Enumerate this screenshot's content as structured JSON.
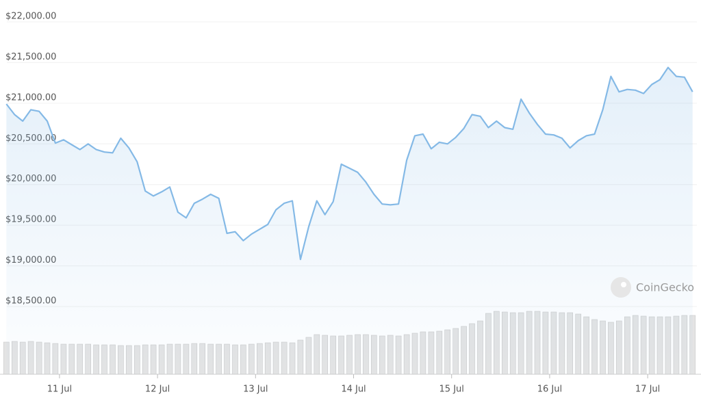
{
  "chart_data": {
    "type": "line",
    "color": "#84b9e6",
    "grid": true,
    "watermark": "CoinGecko",
    "xlim": [
      10.463,
      17.502
    ],
    "xticks": [
      {
        "value": 11,
        "label": "11 Jul"
      },
      {
        "value": 12,
        "label": "12 Jul"
      },
      {
        "value": 13,
        "label": "13 Jul"
      },
      {
        "value": 14,
        "label": "14 Jul"
      },
      {
        "value": 15,
        "label": "15 Jul"
      },
      {
        "value": 16,
        "label": "16 Jul"
      },
      {
        "value": 17,
        "label": "17 Jul"
      }
    ],
    "ylim": [
      18500,
      22000
    ],
    "yticks": [
      {
        "value": 18500,
        "label": "$18,500.00"
      },
      {
        "value": 19000,
        "label": "$19,000.00"
      },
      {
        "value": 19500,
        "label": "$19,500.00"
      },
      {
        "value": 20000,
        "label": "$20,000.00"
      },
      {
        "value": 20500,
        "label": "$20,500.00"
      },
      {
        "value": 21000,
        "label": "$21,000.00"
      },
      {
        "value": 21500,
        "label": "$21,500.00"
      },
      {
        "value": 22000,
        "label": "$22,000.00"
      }
    ],
    "x": [
      10.458,
      10.542,
      10.625,
      10.708,
      10.792,
      10.875,
      10.958,
      11.042,
      11.125,
      11.208,
      11.292,
      11.375,
      11.458,
      11.542,
      11.625,
      11.708,
      11.792,
      11.875,
      11.958,
      12.042,
      12.125,
      12.208,
      12.292,
      12.375,
      12.458,
      12.542,
      12.625,
      12.708,
      12.792,
      12.875,
      12.958,
      13.042,
      13.125,
      13.208,
      13.292,
      13.375,
      13.458,
      13.542,
      13.625,
      13.708,
      13.792,
      13.875,
      13.958,
      14.042,
      14.125,
      14.208,
      14.292,
      14.375,
      14.458,
      14.542,
      14.625,
      14.708,
      14.792,
      14.875,
      14.958,
      15.042,
      15.125,
      15.208,
      15.292,
      15.375,
      15.458,
      15.542,
      15.625,
      15.708,
      15.792,
      15.875,
      15.958,
      16.042,
      16.125,
      16.208,
      16.292,
      16.375,
      16.458,
      16.542,
      16.625,
      16.708,
      16.792,
      16.875,
      16.958,
      17.042,
      17.125,
      17.208,
      17.292,
      17.375,
      17.458
    ],
    "values": [
      20990,
      20860,
      20780,
      20920,
      20900,
      20780,
      20510,
      20550,
      20490,
      20430,
      20500,
      20430,
      20400,
      20390,
      20570,
      20450,
      20280,
      19920,
      19860,
      19910,
      19970,
      19660,
      19590,
      19770,
      19820,
      19880,
      19830,
      19400,
      19420,
      19310,
      19390,
      19450,
      19510,
      19690,
      19770,
      19800,
      19080,
      19480,
      19800,
      19630,
      19790,
      20250,
      20200,
      20150,
      20030,
      19880,
      19760,
      19750,
      19760,
      20300,
      20600,
      20620,
      20440,
      20520,
      20500,
      20580,
      20690,
      20860,
      20840,
      20700,
      20780,
      20700,
      20680,
      21050,
      20880,
      20740,
      20620,
      20610,
      20570,
      20450,
      20540,
      20600,
      20620,
      20920,
      21330,
      21140,
      21170,
      21160,
      21120,
      21230,
      21290,
      21440,
      21330,
      21320,
      21140
    ],
    "volume": {
      "color": "#e4e4e4",
      "values": [
        47,
        48,
        47,
        48,
        47,
        46,
        45,
        44,
        44,
        44,
        44,
        43,
        43,
        43,
        42,
        42,
        42,
        43,
        43,
        43,
        44,
        44,
        44,
        45,
        45,
        44,
        44,
        44,
        43,
        43,
        44,
        45,
        46,
        47,
        47,
        46,
        50,
        54,
        58,
        57,
        56,
        56,
        57,
        58,
        58,
        57,
        56,
        57,
        56,
        58,
        60,
        62,
        62,
        63,
        65,
        67,
        70,
        74,
        78,
        89,
        92,
        91,
        90,
        90,
        92,
        92,
        91,
        91,
        90,
        90,
        88,
        84,
        80,
        78,
        76,
        78,
        84,
        86,
        85,
        84,
        84,
        84,
        85,
        86,
        86
      ]
    },
    "y2lim": [
      0,
      100
    ]
  }
}
